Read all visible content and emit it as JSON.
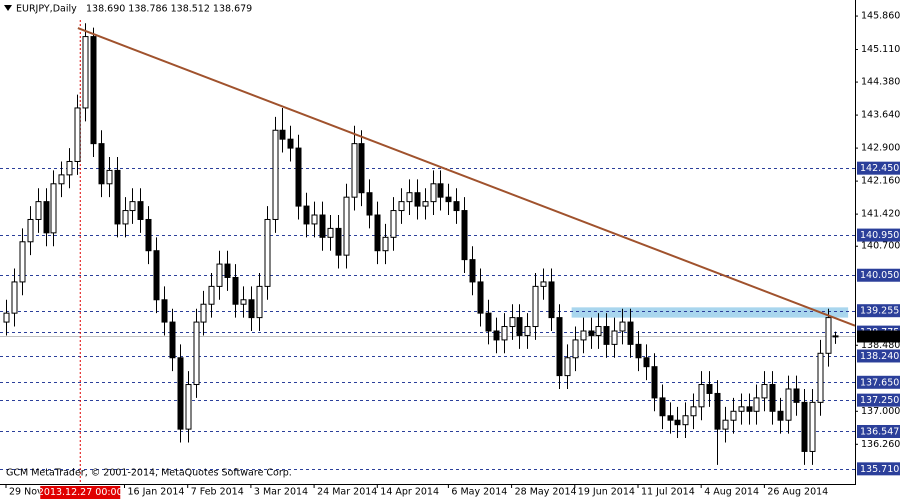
{
  "chart_data": {
    "type": "candlestick",
    "header": {
      "symbol": "EURJPY,Daily",
      "ohlc": "138.690 138.786 138.512 138.679"
    },
    "copyright": "GCM MetaTrader, © 2001-2014, MetaQuotes Software Corp.",
    "xlim": [
      -0.76,
      107.47
    ],
    "ylim": [
      135.37,
      146.22
    ],
    "xticks": [
      {
        "value": 0,
        "label": "29 Nov 2013"
      },
      {
        "value": 15,
        "label": "16 Jan 2014"
      },
      {
        "value": 23,
        "label": "7 Feb 2014"
      },
      {
        "value": 31,
        "label": "3 Mar 2014"
      },
      {
        "value": 39,
        "label": "24 Mar 2014"
      },
      {
        "value": 47,
        "label": "14 Apr 2014"
      },
      {
        "value": 56,
        "label": "6 May 2014"
      },
      {
        "value": 64,
        "label": "28 May 2014"
      },
      {
        "value": 72,
        "label": "19 Jun 2014"
      },
      {
        "value": 80,
        "label": "11 Jul 2014"
      },
      {
        "value": 88,
        "label": "4 Aug 2014"
      },
      {
        "value": 96,
        "label": "26 Aug 2014"
      }
    ],
    "yticks": [
      {
        "value": 145.86,
        "label": "145.860"
      },
      {
        "value": 145.11,
        "label": "145.110"
      },
      {
        "value": 144.38,
        "label": "144.380"
      },
      {
        "value": 143.64,
        "label": "143.640"
      },
      {
        "value": 142.9,
        "label": "142.900"
      },
      {
        "value": 142.16,
        "label": "142.160"
      },
      {
        "value": 141.42,
        "label": "141.420"
      },
      {
        "value": 140.7,
        "label": "140.700"
      },
      {
        "value": 138.48,
        "label": "138.480"
      },
      {
        "value": 137,
        "label": "137.000"
      },
      {
        "value": 136.26,
        "label": "136.260"
      }
    ],
    "levels": [
      {
        "value": 142.45,
        "label": "142.450"
      },
      {
        "value": 140.95,
        "label": "140.950"
      },
      {
        "value": 140.05,
        "label": "140.050"
      },
      139.255,
      138.775,
      {
        "value": 138.24,
        "label": "138.240"
      },
      {
        "value": 137.65,
        "label": "137.650"
      },
      {
        "value": 137.25,
        "label": "137.250"
      },
      136.547,
      {
        "value": 135.71,
        "label": "135.710"
      }
    ],
    "level_color": "#2b3f9a",
    "crosshair": {
      "x": 9.4,
      "label": "2013.12.27 00:00",
      "color": "#e00000"
    },
    "trendline": {
      "points": [
        [
          9.1,
          145.59
        ],
        [
          107.47,
          138.92
        ]
      ],
      "color": "#a0522d"
    },
    "zone": {
      "x": [
        71.6,
        106.6
      ],
      "y": [
        139.1,
        139.33
      ],
      "color": "#a9d6ee"
    },
    "candles": [
      [
        139.0,
        139.5,
        138.7,
        139.2
      ],
      [
        139.2,
        140.2,
        138.9,
        139.9
      ],
      [
        139.9,
        141.1,
        139.6,
        140.8
      ],
      [
        140.8,
        141.6,
        140.5,
        141.3
      ],
      [
        141.3,
        142.0,
        141.0,
        141.7
      ],
      [
        141.7,
        142.0,
        140.7,
        141.0
      ],
      [
        141.0,
        142.4,
        140.7,
        142.1
      ],
      [
        142.1,
        142.6,
        141.8,
        142.3
      ],
      [
        142.3,
        142.9,
        142.0,
        142.6
      ],
      [
        142.6,
        144.1,
        142.3,
        143.8
      ],
      [
        143.8,
        145.7,
        143.5,
        145.4
      ],
      [
        145.4,
        145.6,
        142.7,
        143.0
      ],
      [
        143.0,
        143.3,
        141.8,
        142.1
      ],
      [
        142.1,
        142.7,
        141.8,
        142.4
      ],
      [
        142.4,
        142.7,
        140.9,
        141.2
      ],
      [
        141.2,
        141.8,
        140.9,
        141.5
      ],
      [
        141.5,
        142.0,
        141.2,
        141.7
      ],
      [
        141.7,
        142.0,
        141.0,
        141.3
      ],
      [
        141.3,
        141.6,
        140.3,
        140.6
      ],
      [
        140.6,
        140.9,
        139.2,
        139.5
      ],
      [
        139.5,
        139.8,
        138.7,
        139.0
      ],
      [
        139.0,
        139.3,
        137.9,
        138.2
      ],
      [
        138.2,
        138.5,
        136.3,
        136.6
      ],
      [
        136.6,
        137.9,
        136.3,
        137.6
      ],
      [
        137.6,
        139.3,
        137.3,
        139.0
      ],
      [
        139.0,
        139.7,
        138.7,
        139.4
      ],
      [
        139.4,
        140.1,
        139.1,
        139.8
      ],
      [
        139.8,
        140.6,
        139.5,
        140.3
      ],
      [
        140.3,
        140.6,
        139.7,
        140.0
      ],
      [
        140.0,
        140.3,
        139.1,
        139.4
      ],
      [
        139.4,
        139.8,
        139.1,
        139.5
      ],
      [
        139.5,
        139.8,
        138.8,
        139.1
      ],
      [
        139.1,
        140.1,
        138.8,
        139.8
      ],
      [
        139.8,
        141.6,
        139.5,
        141.3
      ],
      [
        141.3,
        143.6,
        141.0,
        143.3
      ],
      [
        143.3,
        143.8,
        142.8,
        143.1
      ],
      [
        143.1,
        143.4,
        142.6,
        142.9
      ],
      [
        142.9,
        143.2,
        141.3,
        141.6
      ],
      [
        141.6,
        141.9,
        140.9,
        141.2
      ],
      [
        141.2,
        141.7,
        140.9,
        141.4
      ],
      [
        141.4,
        141.7,
        140.6,
        140.9
      ],
      [
        140.9,
        141.4,
        140.6,
        141.1
      ],
      [
        141.1,
        141.4,
        140.2,
        140.5
      ],
      [
        140.5,
        142.1,
        140.2,
        141.8
      ],
      [
        141.8,
        143.4,
        141.5,
        143.0
      ],
      [
        143.0,
        143.3,
        141.6,
        141.9
      ],
      [
        141.9,
        142.2,
        141.1,
        141.4
      ],
      [
        141.4,
        141.7,
        140.3,
        140.6
      ],
      [
        140.6,
        141.2,
        140.3,
        140.9
      ],
      [
        140.9,
        141.8,
        140.6,
        141.5
      ],
      [
        141.5,
        142.0,
        141.2,
        141.7
      ],
      [
        141.7,
        142.2,
        141.4,
        141.9
      ],
      [
        141.9,
        142.2,
        141.3,
        141.6
      ],
      [
        141.6,
        142.0,
        141.3,
        141.7
      ],
      [
        141.7,
        142.4,
        141.4,
        142.1
      ],
      [
        142.1,
        142.4,
        141.5,
        141.8
      ],
      [
        141.8,
        142.1,
        141.4,
        141.7
      ],
      [
        141.7,
        142.0,
        141.2,
        141.5
      ],
      [
        141.5,
        141.8,
        140.1,
        140.4
      ],
      [
        140.4,
        140.7,
        139.6,
        139.9
      ],
      [
        139.9,
        140.2,
        138.9,
        139.2
      ],
      [
        139.2,
        139.5,
        138.5,
        138.8
      ],
      [
        138.8,
        139.1,
        138.3,
        138.6
      ],
      [
        138.6,
        139.2,
        138.3,
        138.9
      ],
      [
        138.9,
        139.4,
        138.6,
        139.1
      ],
      [
        139.1,
        139.4,
        138.4,
        138.7
      ],
      [
        138.7,
        139.2,
        138.4,
        138.9
      ],
      [
        138.9,
        140.1,
        138.6,
        139.8
      ],
      [
        139.8,
        140.2,
        139.5,
        139.9
      ],
      [
        139.9,
        140.2,
        138.8,
        139.1
      ],
      [
        139.1,
        139.4,
        137.5,
        137.8
      ],
      [
        137.8,
        138.5,
        137.5,
        138.2
      ],
      [
        138.2,
        138.9,
        137.9,
        138.6
      ],
      [
        138.6,
        139.1,
        138.3,
        138.8
      ],
      [
        138.8,
        139.1,
        138.4,
        138.7
      ],
      [
        138.7,
        139.2,
        138.4,
        138.9
      ],
      [
        138.9,
        139.2,
        138.2,
        138.5
      ],
      [
        138.5,
        139.1,
        138.2,
        138.8
      ],
      [
        138.8,
        139.3,
        138.5,
        139.0
      ],
      [
        139.0,
        139.3,
        138.2,
        138.5
      ],
      [
        138.5,
        138.8,
        137.9,
        138.2
      ],
      [
        138.2,
        138.5,
        137.7,
        138.0
      ],
      [
        138.0,
        138.3,
        137.0,
        137.3
      ],
      [
        137.3,
        137.6,
        136.6,
        136.9
      ],
      [
        136.9,
        137.2,
        136.5,
        136.8
      ],
      [
        136.8,
        137.1,
        136.4,
        136.7
      ],
      [
        136.7,
        137.2,
        136.4,
        136.9
      ],
      [
        136.9,
        137.4,
        136.6,
        137.1
      ],
      [
        137.1,
        137.9,
        136.8,
        137.6
      ],
      [
        137.6,
        137.9,
        137.1,
        137.4
      ],
      [
        137.4,
        137.7,
        135.8,
        136.6
      ],
      [
        136.6,
        137.1,
        136.3,
        136.8
      ],
      [
        136.8,
        137.3,
        136.5,
        137.0
      ],
      [
        137.0,
        137.4,
        136.7,
        137.1
      ],
      [
        137.1,
        137.4,
        136.7,
        137.0
      ],
      [
        137.0,
        137.6,
        136.7,
        137.3
      ],
      [
        137.3,
        137.9,
        137.0,
        137.6
      ],
      [
        137.6,
        137.9,
        136.7,
        137.0
      ],
      [
        137.0,
        137.3,
        136.5,
        136.8
      ],
      [
        136.8,
        137.8,
        136.5,
        137.5
      ],
      [
        137.5,
        137.8,
        136.9,
        137.2
      ],
      [
        137.2,
        137.5,
        135.8,
        136.1
      ],
      [
        136.1,
        137.5,
        135.8,
        137.2
      ],
      [
        137.2,
        138.6,
        136.9,
        138.3
      ],
      [
        138.3,
        139.3,
        138.0,
        139.1
      ],
      [
        138.69,
        138.786,
        138.512,
        138.679
      ]
    ]
  }
}
